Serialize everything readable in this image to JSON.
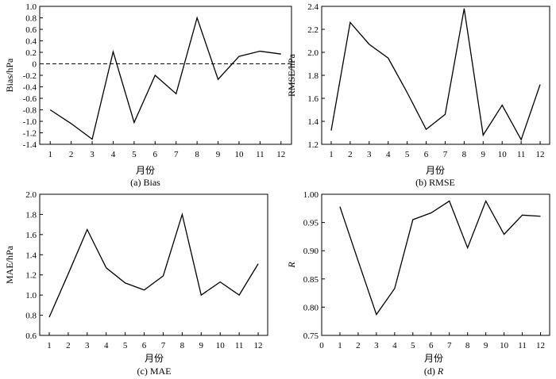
{
  "chart_data": [
    {
      "type": "line",
      "caption": "(a) Bias",
      "xlabel": "月份",
      "ylabel": "Bias/hPa",
      "xlim": [
        0.5,
        12.5
      ],
      "ylim": [
        -1.4,
        1.0
      ],
      "x": [
        1,
        2,
        3,
        4,
        5,
        6,
        7,
        8,
        9,
        10,
        11,
        12
      ],
      "xticks": [
        "1",
        "2",
        "3",
        "4",
        "5",
        "6",
        "7",
        "8",
        "9",
        "10",
        "11",
        "12"
      ],
      "yticks": [
        "-1.4",
        "-1.2",
        "-1.0",
        "-0.8",
        "-0.6",
        "-0.4",
        "-0.2",
        "0",
        "0.2",
        "0.4",
        "0.6",
        "0.8",
        "1.0"
      ],
      "series": [
        {
          "values": [
            -0.8,
            -1.04,
            -1.31,
            0.21,
            -1.02,
            -0.2,
            -0.52,
            0.8,
            -0.27,
            0.13,
            0.22,
            0.17
          ]
        }
      ],
      "reference_line": {
        "y": 0,
        "style": "dashed"
      }
    },
    {
      "type": "line",
      "caption": "(b) RMSE",
      "xlabel": "月份",
      "ylabel": "RMSE/hPa",
      "xlim": [
        0.5,
        12.5
      ],
      "ylim": [
        1.2,
        2.4
      ],
      "x": [
        1,
        2,
        3,
        4,
        5,
        6,
        7,
        8,
        9,
        10,
        11,
        12
      ],
      "xticks": [
        "1",
        "2",
        "3",
        "4",
        "5",
        "6",
        "7",
        "8",
        "9",
        "10",
        "11",
        "12"
      ],
      "yticks": [
        "1.2",
        "1.4",
        "1.6",
        "1.8",
        "2.0",
        "2.2",
        "2.4"
      ],
      "series": [
        {
          "values": [
            1.32,
            2.26,
            2.07,
            1.95,
            1.65,
            1.33,
            1.46,
            2.38,
            1.28,
            1.54,
            1.24,
            1.72
          ]
        }
      ]
    },
    {
      "type": "line",
      "caption": "(c) MAE",
      "xlabel": "月份",
      "ylabel": "MAE/hPa",
      "xlim": [
        0.5,
        12.5
      ],
      "ylim": [
        0.6,
        2.0
      ],
      "x": [
        1,
        2,
        3,
        4,
        5,
        6,
        7,
        8,
        9,
        10,
        11,
        12
      ],
      "xticks": [
        "1",
        "2",
        "3",
        "4",
        "5",
        "6",
        "7",
        "8",
        "9",
        "10",
        "11",
        "12"
      ],
      "yticks": [
        "0.6",
        "0.8",
        "1.0",
        "1.2",
        "1.4",
        "1.6",
        "1.8",
        "2.0"
      ],
      "series": [
        {
          "values": [
            0.78,
            1.21,
            1.65,
            1.27,
            1.12,
            1.05,
            1.19,
            1.8,
            1.0,
            1.13,
            1.0,
            1.31
          ]
        }
      ]
    },
    {
      "type": "line",
      "caption_prefix": "(d)",
      "caption_var": "R",
      "xlabel": "月份",
      "ylabel": "R",
      "xlim": [
        0,
        12.5
      ],
      "ylim": [
        0.75,
        1.0
      ],
      "x": [
        1,
        2,
        3,
        4,
        5,
        6,
        7,
        8,
        9,
        10,
        11,
        12
      ],
      "xticks": [
        "0",
        "1",
        "2",
        "3",
        "4",
        "5",
        "6",
        "7",
        "8",
        "9",
        "10",
        "11",
        "12"
      ],
      "yticks": [
        "0.75",
        "0.80",
        "0.85",
        "0.90",
        "0.95",
        "1.00"
      ],
      "series": [
        {
          "values": [
            0.978,
            0.882,
            0.787,
            0.833,
            0.955,
            0.967,
            0.988,
            0.905,
            0.988,
            0.929,
            0.963,
            0.961
          ]
        }
      ]
    }
  ]
}
